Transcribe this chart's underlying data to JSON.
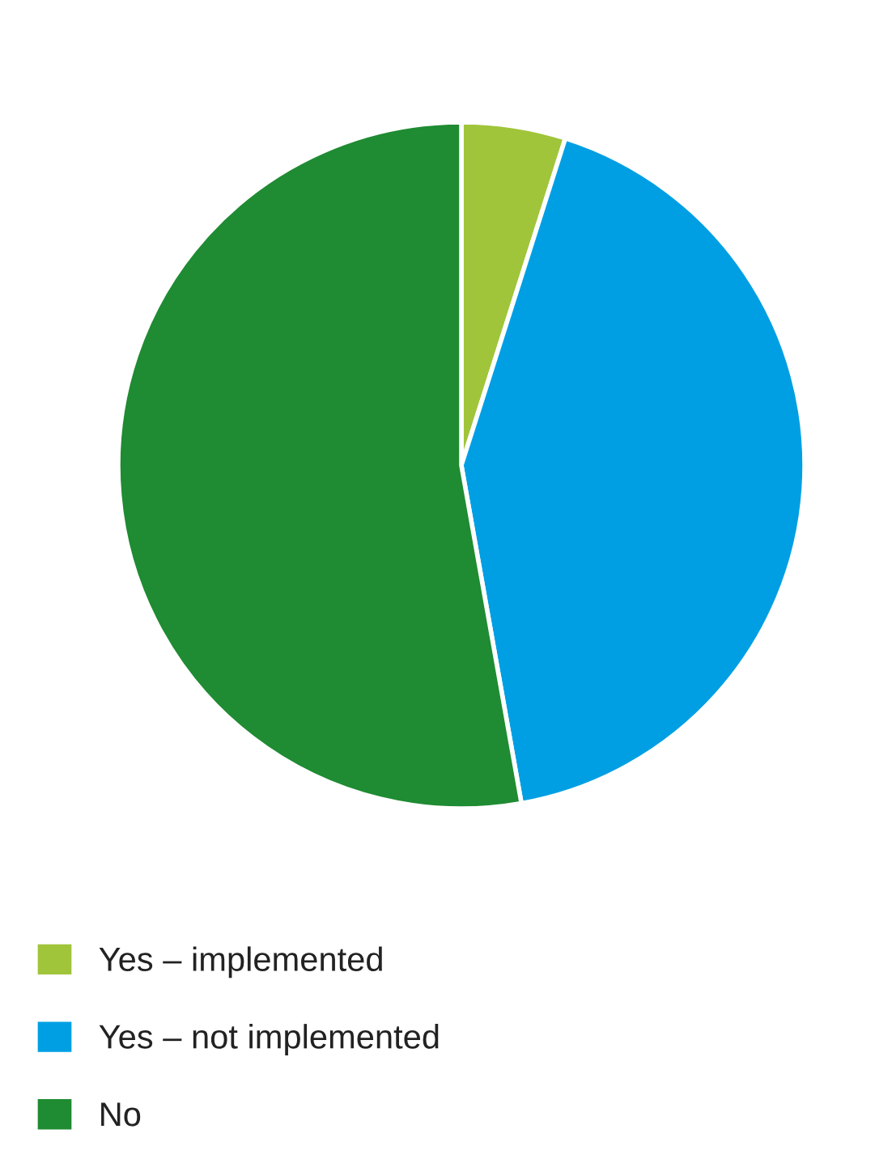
{
  "chart_data": {
    "type": "pie",
    "categories": [
      "Yes – implemented",
      "Yes – not implemented",
      "No"
    ],
    "values": [
      4.9,
      42.3,
      52.8
    ],
    "colors": [
      "#a0c53a",
      "#009fe3",
      "#1f8b32"
    ],
    "legend": "bottom left"
  }
}
